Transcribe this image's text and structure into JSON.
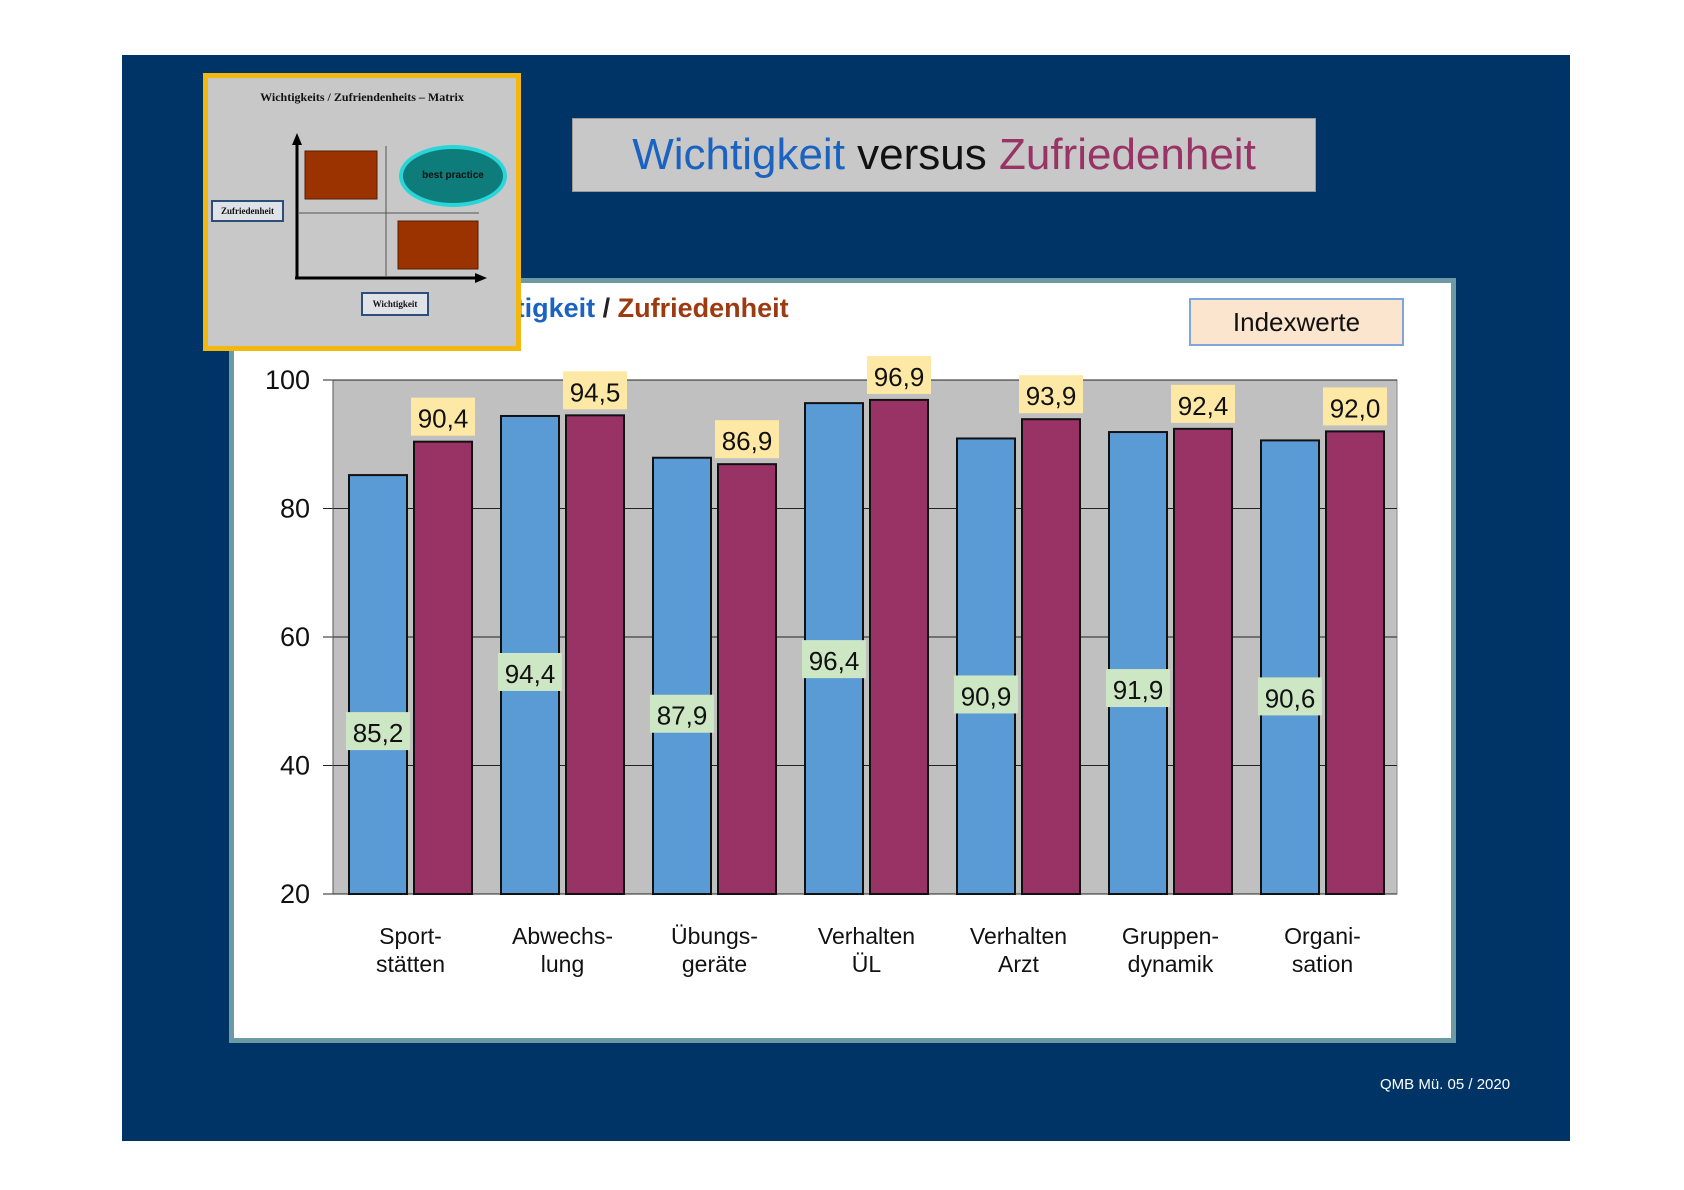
{
  "slide_title": {
    "part1": "Wichtigkeit",
    "part2": " versus ",
    "part3": "Zufriedenheit"
  },
  "chart_title": {
    "part1": "Wichtigkeit",
    "sep": " / ",
    "part2": "Zufriedenheit"
  },
  "index_label": "Indexwerte",
  "footer": "QMB Mü. 05 / 2020",
  "inset": {
    "title": "Wichtigkeits / Zufriendenheits – Matrix",
    "y_label": "Zufriedenheit",
    "x_label": "Wichtigkeit",
    "best_practice": "best practice"
  },
  "colors": {
    "slide_bg": "#003366",
    "wichtigkeit": "#5b9bd5",
    "zufriedenheit": "#993366",
    "label_w_bg": "#cde6c4",
    "label_z_bg": "#fde9a5",
    "plot_bg": "#c0c0c0"
  },
  "chart_data": {
    "type": "bar",
    "categories": [
      [
        "Sport-",
        "stätten"
      ],
      [
        "Abwechs-",
        "lung"
      ],
      [
        "Übungs-",
        "geräte"
      ],
      [
        "Verhalten",
        "ÜL"
      ],
      [
        "Verhalten",
        "Arzt"
      ],
      [
        "Gruppen-",
        "dynamik"
      ],
      [
        "Organi-",
        "sation"
      ]
    ],
    "series": [
      {
        "name": "Wichtigkeit",
        "values": [
          85.2,
          94.4,
          87.9,
          96.4,
          90.9,
          91.9,
          90.6
        ],
        "labels": [
          "85,2",
          "94,4",
          "87,9",
          "96,4",
          "90,9",
          "91,9",
          "90,6"
        ]
      },
      {
        "name": "Zufriedenheit",
        "values": [
          90.4,
          94.5,
          86.9,
          96.9,
          93.9,
          92.4,
          92.0
        ],
        "labels": [
          "90,4",
          "94,5",
          "86,9",
          "96,9",
          "93,9",
          "92,4",
          "92,0"
        ]
      }
    ],
    "ylim": [
      20,
      100
    ],
    "yticks": [
      20,
      40,
      60,
      80,
      100
    ],
    "grid": true
  }
}
